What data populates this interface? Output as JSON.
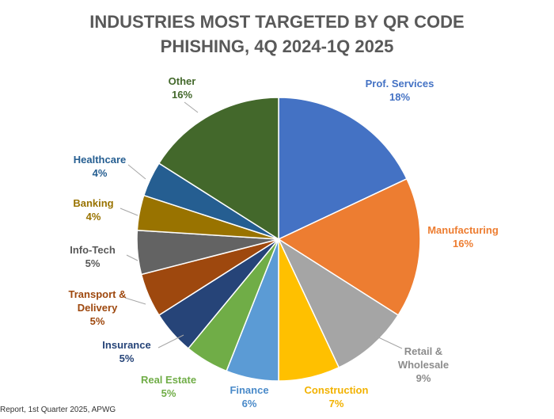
{
  "chart_data": {
    "type": "pie",
    "title_lines": [
      "INDUSTRIES MOST TARGETED BY QR CODE",
      "PHISHING, 4Q 2024-1Q 2025"
    ],
    "slices": [
      {
        "name": "Prof. Services",
        "label_lines": [
          "Prof. Services"
        ],
        "value": 18,
        "display": "18%",
        "color": "#4472C4",
        "label_color": "#4472C4"
      },
      {
        "name": "Manufacturing",
        "label_lines": [
          "Manufacturing"
        ],
        "value": 16,
        "display": "16%",
        "color": "#ED7D31",
        "label_color": "#ED7D31"
      },
      {
        "name": "Retail & Wholesale",
        "label_lines": [
          "Retail &",
          "Wholesale"
        ],
        "value": 9,
        "display": "9%",
        "color": "#A5A5A5",
        "label_color": "#8C8C8C"
      },
      {
        "name": "Construction",
        "label_lines": [
          "Construction"
        ],
        "value": 7,
        "display": "7%",
        "color": "#FFC000",
        "label_color": "#F2B200"
      },
      {
        "name": "Finance",
        "label_lines": [
          "Finance"
        ],
        "value": 6,
        "display": "6%",
        "color": "#5B9BD5",
        "label_color": "#4A8AC9"
      },
      {
        "name": "Real Estate",
        "label_lines": [
          "Real Estate"
        ],
        "value": 5,
        "display": "5%",
        "color": "#70AD47",
        "label_color": "#70AD47"
      },
      {
        "name": "Insurance",
        "label_lines": [
          "Insurance"
        ],
        "value": 5,
        "display": "5%",
        "color": "#264478",
        "label_color": "#264478"
      },
      {
        "name": "Transport & Delivery",
        "label_lines": [
          "Transport &",
          "Delivery"
        ],
        "value": 5,
        "display": "5%",
        "color": "#9E480E",
        "label_color": "#9E480E"
      },
      {
        "name": "Info-Tech",
        "label_lines": [
          "Info-Tech"
        ],
        "value": 5,
        "display": "5%",
        "color": "#636363",
        "label_color": "#595959"
      },
      {
        "name": "Banking",
        "label_lines": [
          "Banking"
        ],
        "value": 4,
        "display": "4%",
        "color": "#997300",
        "label_color": "#997300"
      },
      {
        "name": "Healthcare",
        "label_lines": [
          "Healthcare"
        ],
        "value": 4,
        "display": "4%",
        "color": "#255E91",
        "label_color": "#255E91"
      },
      {
        "name": "Other",
        "label_lines": [
          "Other"
        ],
        "value": 16,
        "display": "16%",
        "color": "#43682B",
        "label_color": "#43682B"
      }
    ],
    "legend": "none"
  },
  "source_text": "Report, 1st Quarter 2025, APWG"
}
